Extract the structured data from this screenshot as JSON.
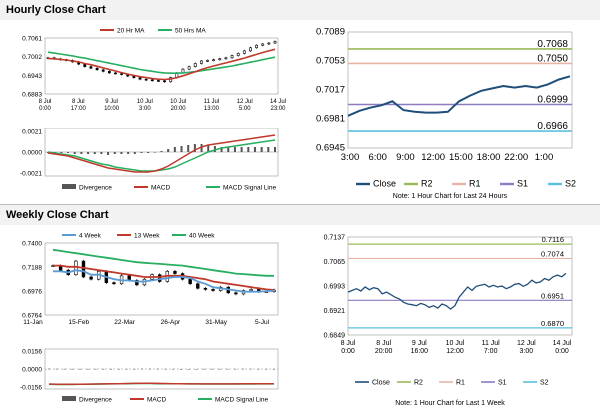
{
  "headers": {
    "hourly": "Hourly Close Chart",
    "weekly": "Weekly Close Chart"
  },
  "notes": {
    "hourly": "Note: 1 Hour Chart for Last 24 Hours",
    "weekly": "Note: 1 Hour Chart for Last 1 Week"
  },
  "colors": {
    "close": "#1f4e79",
    "ma_short": "#c0392b",
    "ma_long": "#27ae60",
    "r2": "#9bbb59",
    "r1": "#e8b4a8",
    "s1": "#8e7cc3",
    "s2": "#5bc0de",
    "week4": "#5b9bd5",
    "divergence": "#555555"
  },
  "chart_data": [
    {
      "id": "hourly-candles",
      "type": "line",
      "legend": [
        "20 Hr MA",
        "50 Hrs MA"
      ],
      "ylim": [
        0.6883,
        0.7061
      ],
      "yticks": [
        "0.7061",
        "0.7002",
        "0.6943",
        "0.6883"
      ],
      "xticks": [
        "8 Jul\n0:00",
        "8 Jul\n17:00",
        "9 Jul\n10:00",
        "10 Jul\n3:00",
        "10 Jul\n20:00",
        "11 Jul\n13:00",
        "12 Jul\n5:00",
        "14 Jul\n23:00"
      ],
      "series": [
        {
          "name": "Close",
          "values": [
            0.6998,
            0.6995,
            0.6992,
            0.699,
            0.6985,
            0.6978,
            0.697,
            0.6965,
            0.696,
            0.6955,
            0.695,
            0.6948,
            0.6945,
            0.694,
            0.6935,
            0.693,
            0.6928,
            0.6926,
            0.6925,
            0.6922,
            0.6935,
            0.695,
            0.6962,
            0.697,
            0.698,
            0.6988,
            0.699,
            0.6992,
            0.6995,
            0.6998,
            0.7005,
            0.7012,
            0.702,
            0.703,
            0.7038,
            0.7042,
            0.7045,
            0.705
          ]
        },
        {
          "name": "20 Hr MA",
          "values": [
            0.6996,
            0.6995,
            0.6993,
            0.6991,
            0.6988,
            0.6985,
            0.698,
            0.6976,
            0.6971,
            0.6966,
            0.6961,
            0.6956,
            0.6951,
            0.6946,
            0.6942,
            0.6938,
            0.6935,
            0.6932,
            0.693,
            0.6929,
            0.6931,
            0.6935,
            0.6941,
            0.6947,
            0.6954,
            0.6961,
            0.6967,
            0.6972,
            0.6977,
            0.6982,
            0.6987,
            0.6992,
            0.6997,
            0.7003,
            0.7009,
            0.7015,
            0.702,
            0.7025
          ]
        },
        {
          "name": "50 Hrs MA",
          "values": [
            0.7016,
            0.7013,
            0.701,
            0.7007,
            0.7004,
            0.7,
            0.6997,
            0.6993,
            0.6989,
            0.6985,
            0.6981,
            0.6977,
            0.6973,
            0.6969,
            0.6965,
            0.6961,
            0.6958,
            0.6955,
            0.6952,
            0.695,
            0.6949,
            0.6949,
            0.695,
            0.6952,
            0.6954,
            0.6957,
            0.696,
            0.6963,
            0.6966,
            0.6969,
            0.6972,
            0.6976,
            0.698,
            0.6984,
            0.6988,
            0.6992,
            0.6996,
            0.7
          ]
        }
      ]
    },
    {
      "id": "hourly-macd",
      "type": "line",
      "ylim": [
        -0.0021,
        0.0021
      ],
      "yticks": [
        "0.0021",
        "0.0000",
        "-0.0021"
      ],
      "legend": [
        "Divergence",
        "MACD",
        "MACD Signal Line"
      ],
      "series": [
        {
          "name": "MACD",
          "values": [
            -0.0001,
            -0.0002,
            -0.0003,
            -0.0004,
            -0.0006,
            -0.0008,
            -0.001,
            -0.0012,
            -0.0014,
            -0.0016,
            -0.0017,
            -0.0018,
            -0.0019,
            -0.002,
            -0.002,
            -0.002,
            -0.0019,
            -0.0017,
            -0.0014,
            -0.001,
            -0.0006,
            -0.0002,
            0.0002,
            0.0005,
            0.0007,
            0.0008,
            0.0009,
            0.001,
            0.0011,
            0.0012,
            0.0013,
            0.0014,
            0.0015,
            0.0016,
            0.0017
          ]
        },
        {
          "name": "MACD Signal Line",
          "values": [
            0.0,
            -0.0001,
            -0.0002,
            -0.0003,
            -0.0004,
            -0.0006,
            -0.0008,
            -0.001,
            -0.0012,
            -0.0013,
            -0.0015,
            -0.0016,
            -0.0017,
            -0.0018,
            -0.0019,
            -0.0019,
            -0.0019,
            -0.0018,
            -0.0017,
            -0.0015,
            -0.0012,
            -0.0009,
            -0.0006,
            -0.0003,
            0.0,
            0.0002,
            0.0004,
            0.0005,
            0.0006,
            0.0007,
            0.0008,
            0.0009,
            0.001,
            0.0011,
            0.0012
          ]
        },
        {
          "name": "Divergence",
          "values": [
            -0.0001,
            -0.0001,
            -0.0001,
            -0.0001,
            -0.0002,
            -0.0002,
            -0.0002,
            -0.0002,
            -0.0002,
            -0.0003,
            -0.0002,
            -0.0002,
            -0.0002,
            -0.0002,
            -0.0001,
            -0.0001,
            0.0,
            0.0001,
            0.0003,
            0.0005,
            0.0006,
            0.0007,
            0.0008,
            0.0008,
            0.0007,
            0.0006,
            0.0005,
            0.0005,
            0.0005,
            0.0005,
            0.0005,
            0.0005,
            0.0005,
            0.0005,
            0.0005
          ]
        }
      ]
    },
    {
      "id": "hourly-close-24h",
      "type": "line",
      "ylim": [
        0.6945,
        0.7089
      ],
      "yticks": [
        "0.7089",
        "0.7053",
        "0.7017",
        "0.6981",
        "0.6945"
      ],
      "xticks": [
        "3:00",
        "6:00",
        "9:00",
        "12:00",
        "15:00",
        "18:00",
        "22:00",
        "1:00"
      ],
      "legend": [
        "Close",
        "R2",
        "R1",
        "S1",
        "S2"
      ],
      "levels": {
        "R2": 0.7068,
        "R1": 0.705,
        "S1": 0.6999,
        "S2": 0.6966
      },
      "level_labels": [
        "0.7068",
        "0.7050",
        "0.6999",
        "0.6966"
      ],
      "series": [
        {
          "name": "Close",
          "values": [
            0.6985,
            0.6991,
            0.6995,
            0.6998,
            0.7003,
            0.6992,
            0.699,
            0.6989,
            0.6989,
            0.699,
            0.7003,
            0.701,
            0.7016,
            0.7019,
            0.7022,
            0.702,
            0.7022,
            0.702,
            0.7024,
            0.703,
            0.7034
          ]
        }
      ]
    },
    {
      "id": "weekly-candles",
      "type": "line",
      "ylim": [
        0.6764,
        0.74
      ],
      "yticks": [
        "0.7400",
        "0.7188",
        "0.6976",
        "0.6764"
      ],
      "xticks": [
        "11-Jan",
        "15-Feb",
        "22-Mar",
        "26-Apr",
        "31-May",
        "5-Jul"
      ],
      "legend": [
        "4 Week",
        "13 Week",
        "40 Week"
      ],
      "series": [
        {
          "name": "Close",
          "values": [
            0.72,
            0.716,
            0.712,
            0.724,
            0.71,
            0.708,
            0.715,
            0.705,
            0.704,
            0.711,
            0.707,
            0.703,
            0.708,
            0.712,
            0.706,
            0.715,
            0.713,
            0.708,
            0.704,
            0.7,
            0.699,
            0.698,
            0.701,
            0.696,
            0.695,
            0.698,
            0.699,
            0.697,
            0.697,
            0.6985
          ]
        },
        {
          "name": "4 Week",
          "values": [
            0.715,
            0.715,
            0.714,
            0.716,
            0.715,
            0.712,
            0.712,
            0.71,
            0.708,
            0.707,
            0.707,
            0.706,
            0.706,
            0.707,
            0.708,
            0.709,
            0.71,
            0.71,
            0.709,
            0.706,
            0.704,
            0.701,
            0.7,
            0.699,
            0.698,
            0.697,
            0.697,
            0.697,
            0.6975,
            0.6978
          ]
        },
        {
          "name": "13 Week",
          "values": [
            0.72,
            0.72,
            0.719,
            0.719,
            0.718,
            0.717,
            0.716,
            0.715,
            0.714,
            0.713,
            0.712,
            0.711,
            0.71,
            0.71,
            0.71,
            0.711,
            0.711,
            0.711,
            0.71,
            0.709,
            0.708,
            0.706,
            0.705,
            0.704,
            0.703,
            0.702,
            0.701,
            0.7,
            0.699,
            0.6985
          ]
        },
        {
          "name": "40 Week",
          "values": [
            0.734,
            0.733,
            0.732,
            0.731,
            0.73,
            0.729,
            0.728,
            0.727,
            0.726,
            0.725,
            0.724,
            0.723,
            0.7225,
            0.722,
            0.7215,
            0.721,
            0.7205,
            0.72,
            0.719,
            0.718,
            0.717,
            0.716,
            0.715,
            0.714,
            0.713,
            0.7125,
            0.712,
            0.7115,
            0.711,
            0.711
          ]
        }
      ]
    },
    {
      "id": "weekly-macd",
      "type": "line",
      "ylim": [
        -0.0156,
        0.0156
      ],
      "yticks": [
        "0.0156",
        "0.0000",
        "-0.0156"
      ],
      "legend": [
        "Divergence",
        "MACD",
        "MACD Signal Line"
      ],
      "series": [
        {
          "name": "MACD",
          "values": [
            -0.013,
            -0.0132,
            -0.0133,
            -0.0133,
            -0.0132,
            -0.0131,
            -0.013,
            -0.0129,
            -0.0128,
            -0.0127,
            -0.0126,
            -0.0125,
            -0.0124,
            -0.0124,
            -0.0125,
            -0.0126,
            -0.0127,
            -0.0128,
            -0.0129,
            -0.0129,
            -0.0129,
            -0.0129,
            -0.0129,
            -0.0129,
            -0.0129,
            -0.0128,
            -0.0128,
            -0.0128,
            -0.0128,
            -0.0128
          ]
        },
        {
          "name": "MACD Signal Line",
          "values": [
            -0.0133,
            -0.0134,
            -0.0134,
            -0.0134,
            -0.0133,
            -0.0132,
            -0.0131,
            -0.013,
            -0.0129,
            -0.0128,
            -0.0127,
            -0.0126,
            -0.0126,
            -0.0126,
            -0.0127,
            -0.0127,
            -0.0128,
            -0.0128,
            -0.0129,
            -0.0129,
            -0.013,
            -0.013,
            -0.013,
            -0.013,
            -0.013,
            -0.013,
            -0.013,
            -0.0129,
            -0.0129,
            -0.0129
          ]
        },
        {
          "name": "Divergence",
          "values": [
            0.0003,
            0.0002,
            0.0001,
            0.0001,
            0.0001,
            0.0001,
            0.0001,
            0.0001,
            0.0001,
            0.0001,
            0.0001,
            0.0001,
            0.0002,
            0.0002,
            0.0002,
            0.0001,
            0.0001,
            0.0,
            0.0,
            0.0,
            0.0001,
            0.0001,
            0.0001,
            0.0001,
            0.0001,
            0.0002,
            0.0002,
            0.0001,
            0.0001,
            0.0001
          ]
        }
      ]
    },
    {
      "id": "weekly-close-1w",
      "type": "line",
      "ylim": [
        0.6849,
        0.7137
      ],
      "yticks": [
        "0.7137",
        "0.7065",
        "0.6993",
        "0.6921",
        "0.6849"
      ],
      "xticks": [
        "8 Jul\n0:00",
        "8 Jul\n20:00",
        "9 Jul\n16:00",
        "10 Jul\n12:00",
        "11 Jul\n7:00",
        "12 Jul\n3:00",
        "14 Jul\n0:00"
      ],
      "legend": [
        "Close",
        "R2",
        "R1",
        "S1",
        "S2"
      ],
      "levels": {
        "R2": 0.7116,
        "R1": 0.7074,
        "S1": 0.6951,
        "S2": 0.687
      },
      "level_labels": [
        "0.7116",
        "0.7074",
        "0.6951",
        "0.6870"
      ],
      "series": [
        {
          "name": "Close",
          "values": [
            0.6975,
            0.698,
            0.6985,
            0.6978,
            0.699,
            0.6982,
            0.6988,
            0.6985,
            0.697,
            0.6975,
            0.6968,
            0.696,
            0.6955,
            0.6945,
            0.694,
            0.6938,
            0.6935,
            0.6942,
            0.6938,
            0.693,
            0.6935,
            0.6928,
            0.694,
            0.6935,
            0.6925,
            0.6935,
            0.696,
            0.6975,
            0.699,
            0.698,
            0.6992,
            0.6995,
            0.6998,
            0.699,
            0.6995,
            0.699,
            0.6993,
            0.6985,
            0.699,
            0.6998,
            0.7,
            0.6992,
            0.6998,
            0.701,
            0.7002,
            0.7005,
            0.7015,
            0.701,
            0.702,
            0.7025,
            0.702,
            0.703
          ]
        }
      ]
    }
  ]
}
